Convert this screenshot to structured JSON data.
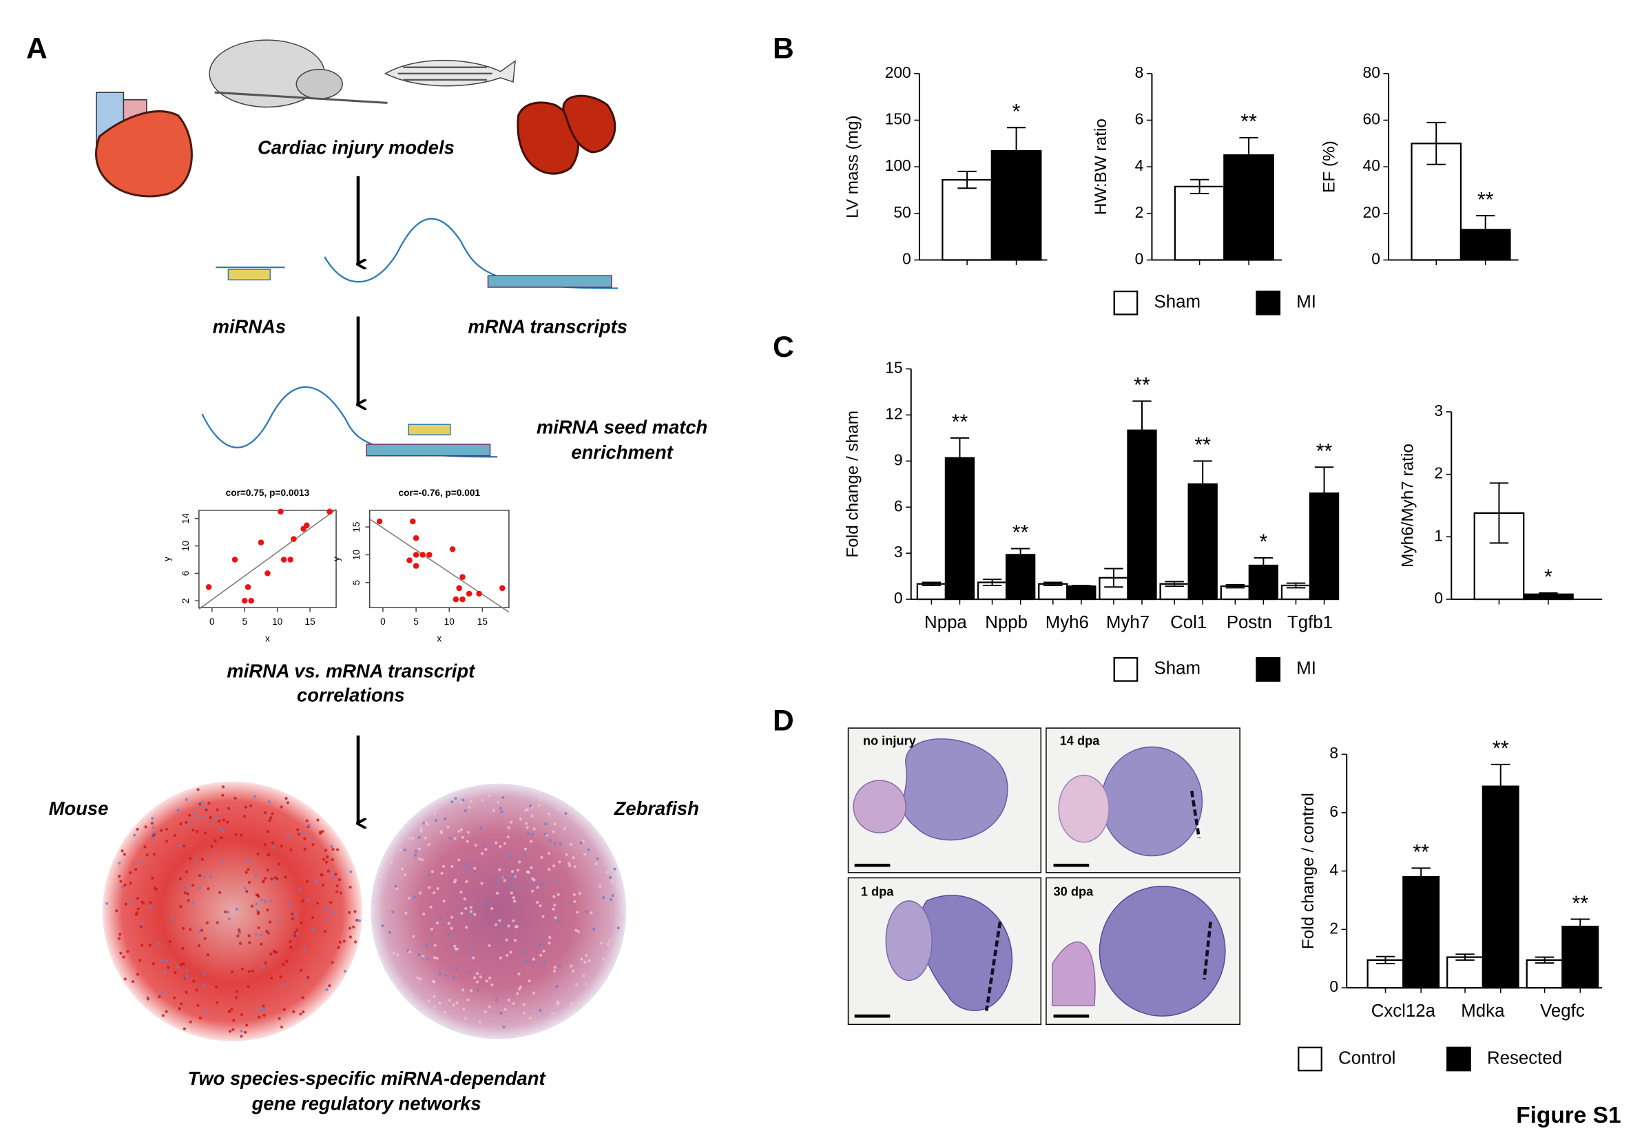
{
  "figure": {
    "panel_labels": [
      "A",
      "B",
      "C",
      "D"
    ],
    "figure_label": "Figure S1",
    "panel_a": {
      "models_label": "Cardiac injury models",
      "mirna_label": "miRNAs",
      "mrna_label": "mRNA transcripts",
      "seed_label": [
        "miRNA seed match",
        "enrichment"
      ],
      "correlation_label": [
        "miRNA vs. mRNA transcript",
        "correlations"
      ],
      "mouse_label": "Mouse",
      "zebrafish_label": "Zebrafish",
      "network_label": [
        "Two species-specific miRNA-dependant",
        "gene regulatory networks"
      ]
    },
    "panel_d_images": [
      "no injury",
      "14 dpa",
      "1 dpa",
      "30 dpa"
    ]
  },
  "chart_data": [
    {
      "type": "bar",
      "ylabel": "LV mass (mg)",
      "ylim": [
        0,
        200
      ],
      "yticks": [
        0,
        50,
        100,
        150,
        200
      ],
      "series": [
        {
          "name": "Sham",
          "color": "#ffffff",
          "values": [
            86
          ],
          "errors": [
            9
          ]
        },
        {
          "name": "MI",
          "color": "#000000",
          "values": [
            117
          ],
          "errors": [
            25
          ]
        }
      ],
      "significance": [
        "*"
      ]
    },
    {
      "type": "bar",
      "ylabel": "HW:BW ratio",
      "ylim": [
        0,
        8
      ],
      "yticks": [
        0,
        2,
        4,
        6,
        8
      ],
      "series": [
        {
          "color": "#ffffff",
          "values": [
            3.15
          ],
          "errors": [
            0.3
          ]
        },
        {
          "color": "#000000",
          "values": [
            4.5
          ],
          "errors": [
            0.75
          ]
        }
      ],
      "significance": [
        "**"
      ]
    },
    {
      "type": "bar",
      "ylabel": "EF (%)",
      "ylim": [
        0,
        80
      ],
      "yticks": [
        0,
        20,
        40,
        60,
        80
      ],
      "series": [
        {
          "color": "#ffffff",
          "values": [
            50
          ],
          "errors": [
            9
          ]
        },
        {
          "color": "#000000",
          "values": [
            13
          ],
          "errors": [
            6
          ]
        }
      ],
      "significance": [
        "**"
      ]
    },
    {
      "type": "bar",
      "ylabel": "Fold change / sham",
      "ylim": [
        0,
        15
      ],
      "yticks": [
        0,
        3,
        6,
        9,
        12,
        15
      ],
      "categories": [
        "Nppa",
        "Nppb",
        "Myh6",
        "Myh7",
        "Col1",
        "Postn",
        "Tgfb1"
      ],
      "series": [
        {
          "name": "Sham",
          "color": "#ffffff",
          "values": [
            1,
            1.1,
            1,
            1.4,
            1,
            0.85,
            0.9
          ],
          "errors": [
            0.1,
            0.2,
            0.1,
            0.6,
            0.15,
            0.1,
            0.15
          ]
        },
        {
          "name": "MI",
          "color": "#000000",
          "values": [
            9.2,
            2.9,
            0.85,
            11,
            7.5,
            2.2,
            6.9
          ],
          "errors": [
            1.3,
            0.4,
            0.05,
            1.9,
            1.5,
            0.5,
            1.7
          ]
        }
      ],
      "significance": [
        "**",
        "**",
        null,
        "**",
        "**",
        "*",
        "**"
      ]
    },
    {
      "type": "bar",
      "ylabel": "Myh6/Myh7 ratio",
      "ylim": [
        0,
        3
      ],
      "yticks": [
        0,
        1,
        2,
        3
      ],
      "series": [
        {
          "color": "#ffffff",
          "values": [
            1.38
          ],
          "errors": [
            0.48
          ]
        },
        {
          "color": "#000000",
          "values": [
            0.08
          ],
          "errors": [
            0.02
          ]
        }
      ],
      "significance": [
        "*"
      ]
    },
    {
      "type": "bar",
      "ylabel": "Fold change / control",
      "ylim": [
        0,
        8
      ],
      "yticks": [
        0,
        2,
        4,
        6,
        8
      ],
      "categories": [
        "Cxcl12a",
        "Mdka",
        "Vegfc"
      ],
      "series": [
        {
          "name": "Control",
          "color": "#ffffff",
          "values": [
            0.95,
            1.05,
            0.95
          ],
          "errors": [
            0.12,
            0.1,
            0.1
          ]
        },
        {
          "name": "Resected",
          "color": "#000000",
          "values": [
            3.8,
            6.9,
            2.1
          ],
          "errors": [
            0.3,
            0.75,
            0.25
          ]
        }
      ],
      "significance": [
        "**",
        "**",
        "**"
      ]
    },
    {
      "type": "scatter",
      "title": "cor=0.75, p=0.0013",
      "xlabel": "x",
      "ylabel": "y",
      "color": "#ee1111",
      "xlim": [
        -2,
        19
      ],
      "ylim": [
        1,
        15.2
      ],
      "xticks": [
        0,
        5,
        10,
        15
      ],
      "yticks": [
        2,
        6,
        10,
        14
      ],
      "x": [
        -0.5,
        3.5,
        5,
        5.5,
        6,
        7.5,
        8.5,
        10.5,
        11,
        12,
        12.5,
        14,
        14.5,
        18
      ],
      "values": [
        4,
        8,
        2,
        4,
        2,
        10.5,
        6,
        15,
        8,
        8,
        11,
        12.5,
        13,
        15
      ]
    },
    {
      "type": "scatter",
      "title": "cor=-0.76, p=0.001",
      "xlabel": "x",
      "ylabel": "y",
      "color": "#ee1111",
      "xlim": [
        -2,
        19
      ],
      "ylim": [
        0.5,
        18
      ],
      "xticks": [
        0,
        5,
        10,
        15
      ],
      "yticks": [
        5,
        10,
        15
      ],
      "x": [
        -0.5,
        4.5,
        4,
        5,
        5,
        5,
        6,
        7,
        10.5,
        11.5,
        11,
        12,
        12,
        13,
        14.5,
        18
      ],
      "values": [
        16,
        16,
        9,
        13,
        10,
        8,
        10,
        10,
        11,
        4,
        2,
        6,
        2,
        3,
        3,
        4
      ]
    }
  ]
}
